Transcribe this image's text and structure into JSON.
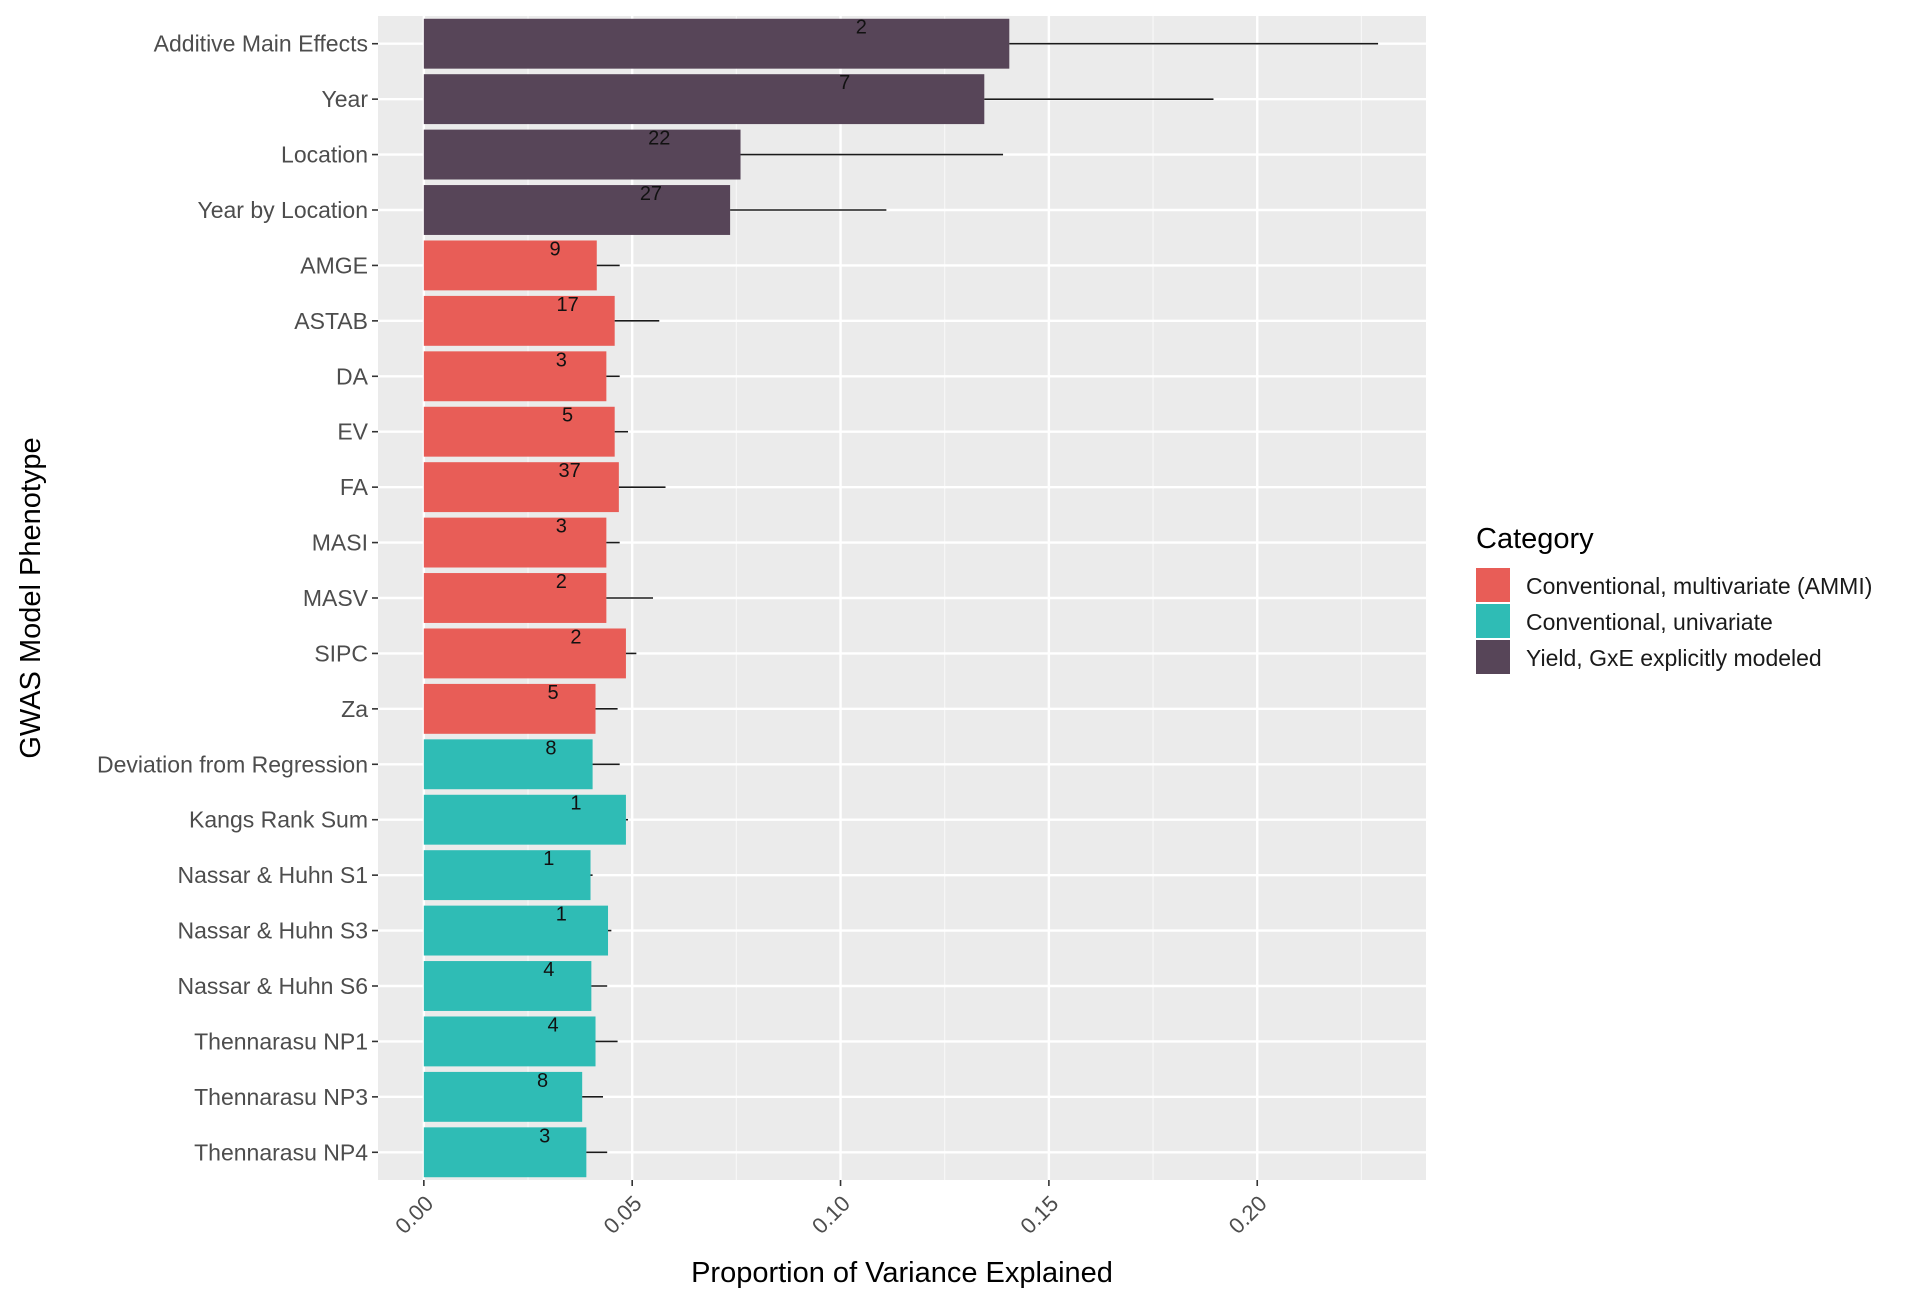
{
  "chart_data": {
    "type": "bar",
    "orientation": "horizontal",
    "title": "",
    "xlabel": "Proportion of Variance Explained",
    "ylabel": "GWAS Model Phenotype",
    "xlim": [
      -0.011,
      0.2405
    ],
    "xticks": [
      0.0,
      0.05,
      0.1,
      0.15,
      0.2
    ],
    "xtick_labels": [
      "0.00",
      "0.05",
      "0.10",
      "0.15",
      "0.20"
    ],
    "grid": true,
    "legend": {
      "title": "Category",
      "position": "right",
      "entries": [
        {
          "label": "Conventional, multivariate (AMMI)",
          "color": "#E85D57"
        },
        {
          "label": "Conventional, univariate",
          "color": "#2FBCB5"
        },
        {
          "label": "Yield, GxE explicitly modeled",
          "color": "#574558"
        }
      ]
    },
    "categories": [
      "Additive Main Effects",
      "Year",
      "Location",
      "Year by Location",
      "AMGE",
      "ASTAB",
      "DA",
      "EV",
      "FA",
      "MASI",
      "MASV",
      "SIPC",
      "Za",
      "Deviation from Regression",
      "Kangs Rank Sum",
      "Nassar & Huhn S1",
      "Nassar & Huhn S3",
      "Nassar & Huhn S6",
      "Thennarasu NP1",
      "Thennarasu NP3",
      "Thennarasu NP4"
    ],
    "values": [
      0.1405,
      0.1345,
      0.076,
      0.0735,
      0.0415,
      0.0458,
      0.0438,
      0.0458,
      0.0468,
      0.0438,
      0.0438,
      0.0485,
      0.0412,
      0.0405,
      0.0485,
      0.04,
      0.0442,
      0.0402,
      0.0412,
      0.038,
      0.039
    ],
    "error_upper": [
      0.229,
      0.1895,
      0.139,
      0.111,
      0.047,
      0.0565,
      0.047,
      0.049,
      0.058,
      0.047,
      0.055,
      0.051,
      0.0465,
      0.047,
      0.049,
      0.0405,
      0.045,
      0.044,
      0.0465,
      0.043,
      0.044
    ],
    "counts": [
      "2",
      "7",
      "22",
      "27",
      "9",
      "17",
      "3",
      "5",
      "37",
      "3",
      "2",
      "2",
      "5",
      "8",
      "1",
      "1",
      "1",
      "4",
      "4",
      "8",
      "3"
    ],
    "count_positions": [
      0.105,
      0.101,
      0.0565,
      0.0545,
      0.0315,
      0.0345,
      0.033,
      0.0345,
      0.035,
      0.033,
      0.033,
      0.0365,
      0.031,
      0.0305,
      0.0365,
      0.03,
      0.033,
      0.03,
      0.031,
      0.0285,
      0.029
    ],
    "groups": [
      "Yield, GxE explicitly modeled",
      "Yield, GxE explicitly modeled",
      "Yield, GxE explicitly modeled",
      "Yield, GxE explicitly modeled",
      "Conventional, multivariate (AMMI)",
      "Conventional, multivariate (AMMI)",
      "Conventional, multivariate (AMMI)",
      "Conventional, multivariate (AMMI)",
      "Conventional, multivariate (AMMI)",
      "Conventional, multivariate (AMMI)",
      "Conventional, multivariate (AMMI)",
      "Conventional, multivariate (AMMI)",
      "Conventional, multivariate (AMMI)",
      "Conventional, univariate",
      "Conventional, univariate",
      "Conventional, univariate",
      "Conventional, univariate",
      "Conventional, univariate",
      "Conventional, univariate",
      "Conventional, univariate",
      "Conventional, univariate"
    ]
  }
}
